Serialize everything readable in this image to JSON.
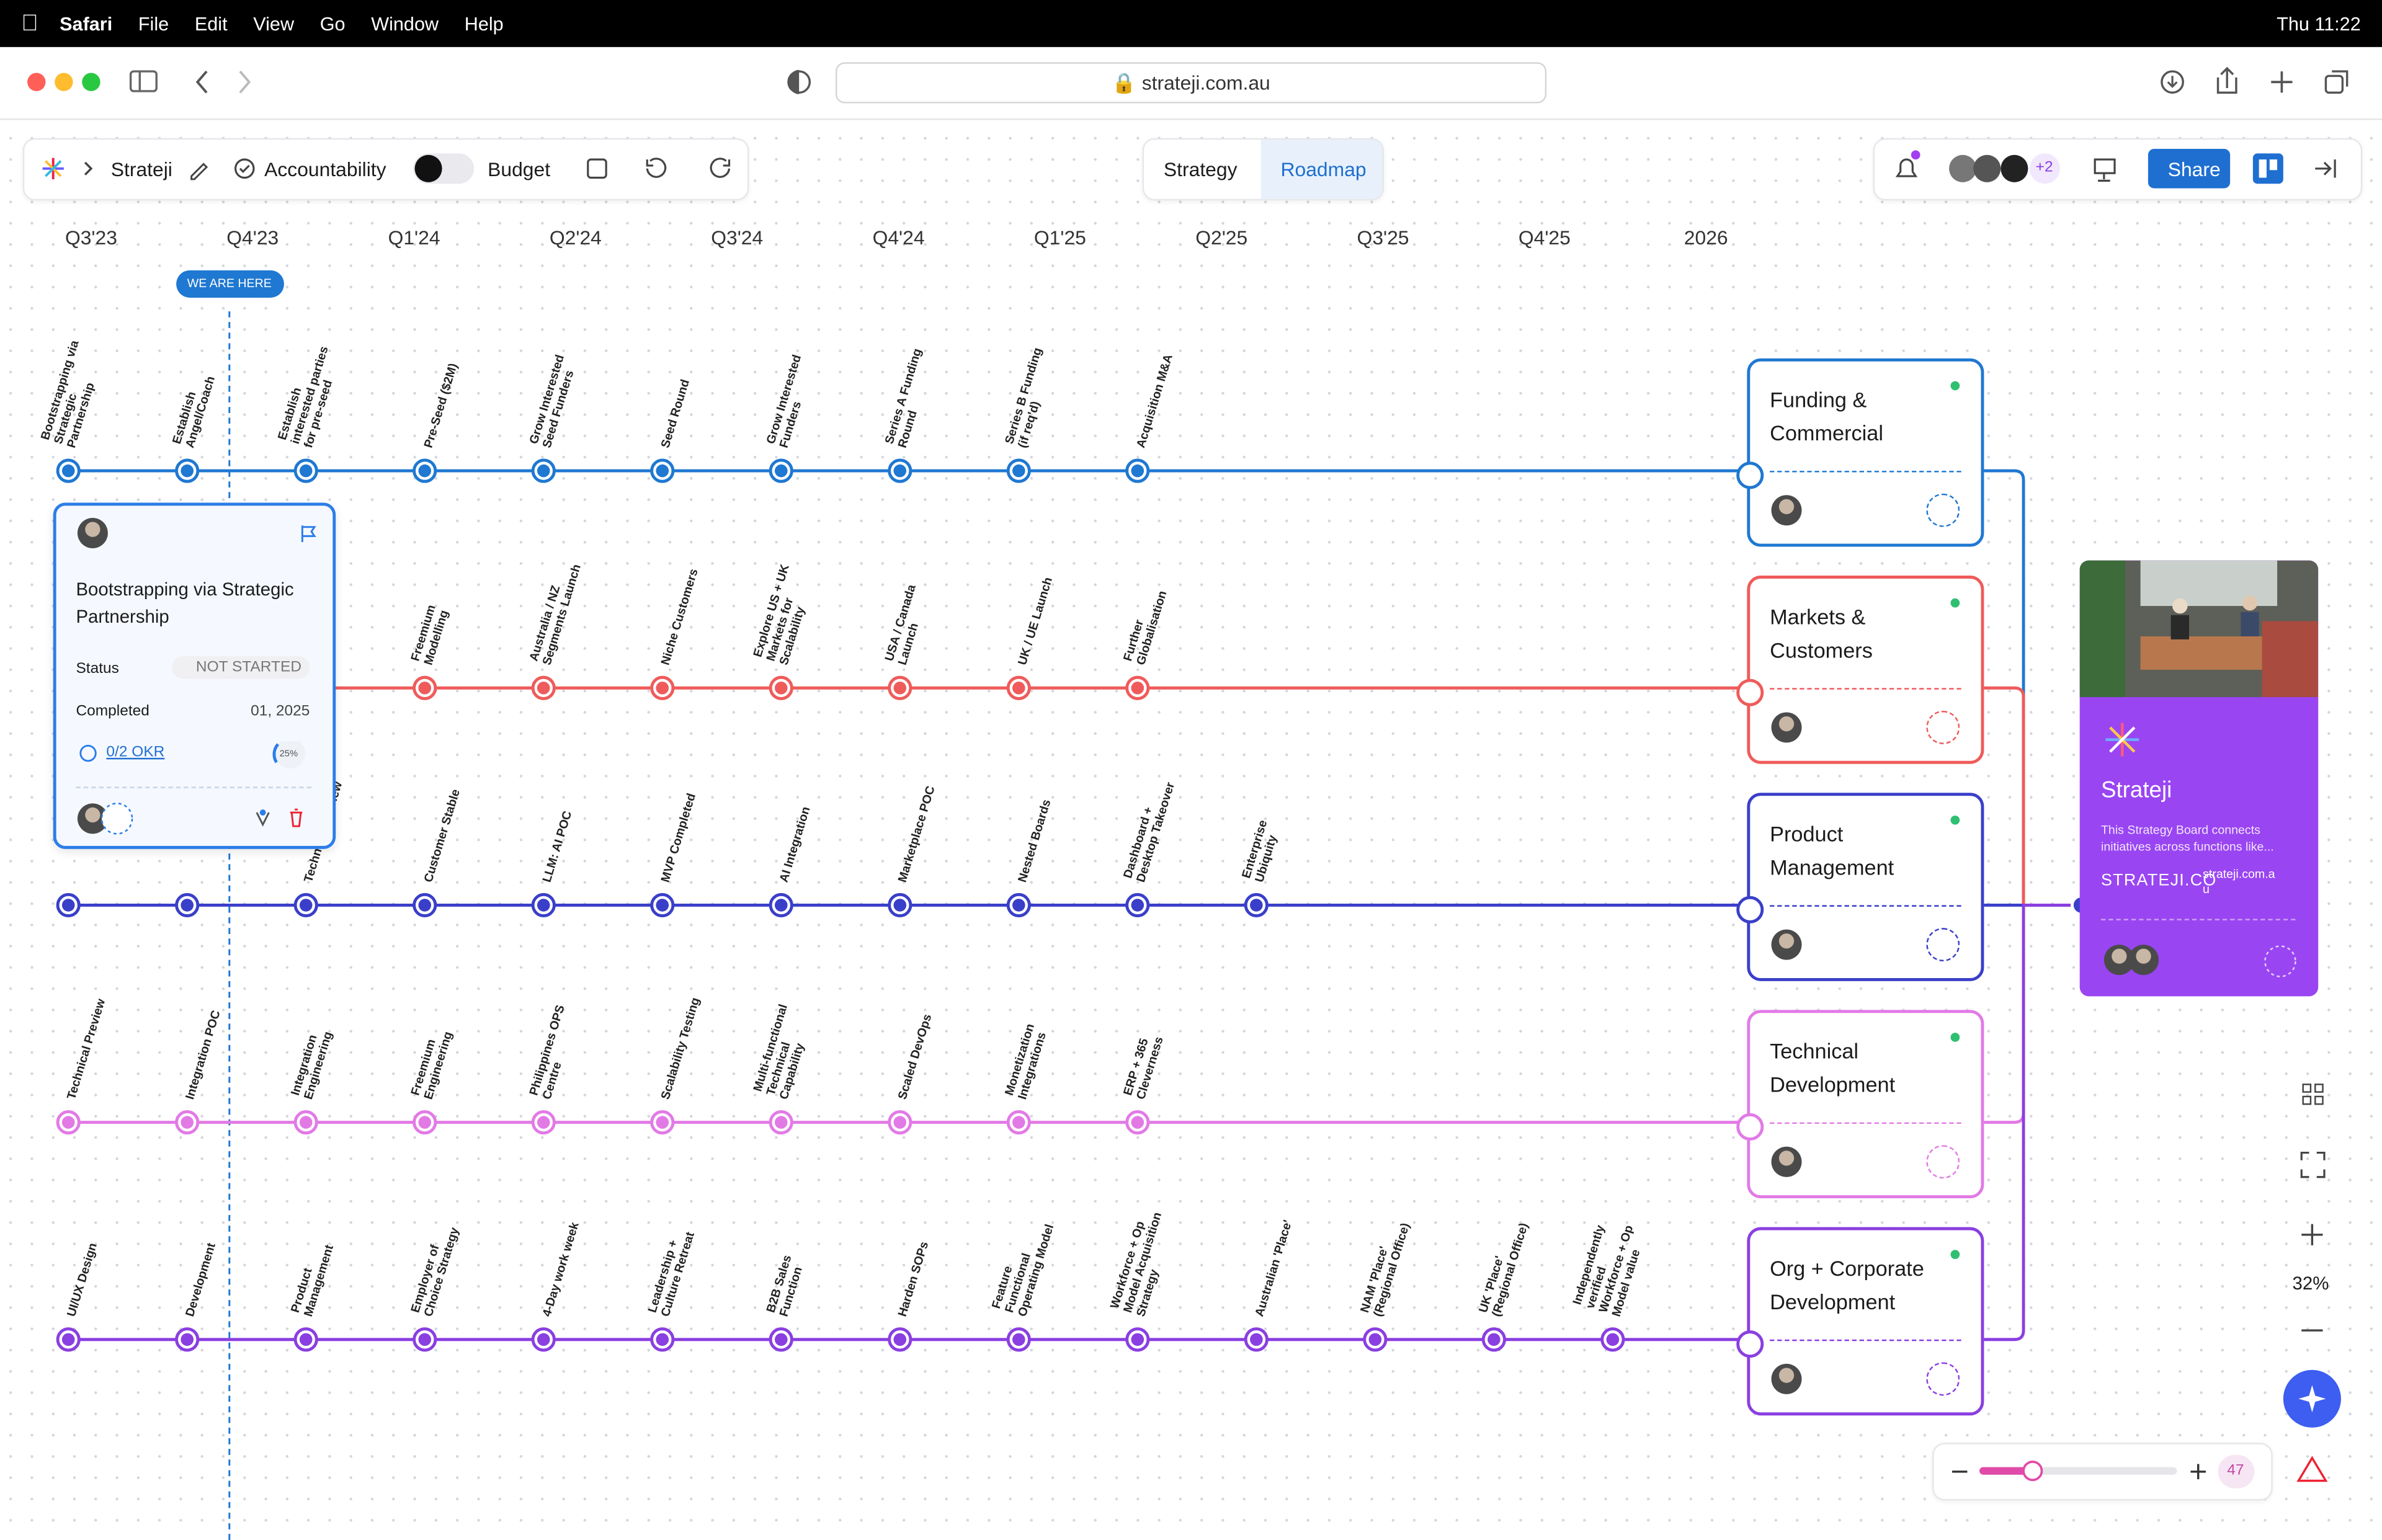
{
  "menubar": {
    "app": "Safari",
    "menus": [
      "File",
      "Edit",
      "View",
      "Go",
      "Window",
      "Help"
    ],
    "clock": "Thu 11:22"
  },
  "browser": {
    "url": "strateji.com.au"
  },
  "toolbar": {
    "board": "Strateji",
    "accountability": "Accountability",
    "budget": "Budget",
    "tabs": [
      "Strategy",
      "Roadmap"
    ],
    "collaborators_extra": "+2",
    "share": "Share"
  },
  "timeline": {
    "quarters": [
      "Q3'23",
      "Q4'23",
      "Q1'24",
      "Q2'24",
      "Q3'24",
      "Q4'24",
      "Q1'25",
      "Q2'25",
      "Q3'25",
      "Q4'25",
      "2026"
    ],
    "marker": "WE ARE HERE"
  },
  "lanes": [
    {
      "name": "Funding & Commercial",
      "color": "#1f78d1",
      "milestones": [
        "Bootstrapping via Strategic Partnership",
        "Establish Angel/Coach",
        "Establish interested parties for pre-seed",
        "Pre-Seed ($2M)",
        "Grow Interested Seed Funders",
        "Seed Round",
        "Grow Interested Funders",
        "Series A Funding Round",
        "Series B Funding (if req'd)",
        "Acquisition M&A"
      ]
    },
    {
      "name": "Markets & Customers",
      "color": "#ef5b5b",
      "milestones": [
        null,
        null,
        null,
        "Freemium Modelling",
        "Australia / NZ Segments Launch",
        "Niche Customers",
        "Explore US + UK Markets for Scalability",
        "USA / Canada Launch",
        "UK / UE Launch",
        "Further Globalisation"
      ]
    },
    {
      "name": "Product Management",
      "color": "#3a3fc9",
      "milestones": [
        null,
        null,
        "Technical Preview",
        "Customer Stable",
        "LLM: AI POC",
        "MVP Completed",
        "AI Integration",
        "Marketplace POC",
        "Nested Boards",
        "Dashboard + Desktop Takeover",
        "Enterprise Ubiquity"
      ]
    },
    {
      "name": "Technical Development",
      "color": "#e27ae6",
      "milestones": [
        "Technical Preview",
        "Integration POC",
        "Integration Engineering",
        "Freemium Engineering",
        "Philippines OPS Centre",
        "Scalability Testing",
        "Multi-functional Technical Capability",
        "Scaled DevOps",
        "Monetization Integrations",
        "ERP + 365 Cleverness"
      ]
    },
    {
      "name": "Org + Corporate Development",
      "color": "#8a3fe0",
      "milestones": [
        "UI/UX Design",
        "Development",
        "Product Management",
        "Employer of Choice Strategy",
        "4-Day work week",
        "Leadership + Culture Retreat",
        "B2B Sales Function",
        "Harden SOPs",
        "Feature Functional Operating Model",
        "Workforce + Op Model Acquisition Strategy",
        "Australian 'Place'",
        "NAM 'Place' (Regional Office)",
        "UK 'Place' (Regional Office)",
        "Independently verified Workforce + Op Model value"
      ]
    }
  ],
  "detail_card": {
    "title": "Bootstrapping via Strategic Partnership",
    "status_label": "Status",
    "status": "NOT STARTED",
    "completed_label": "Completed",
    "completed": "01, 2025",
    "okr": "0/2 OKR",
    "progress": "25%"
  },
  "board_card": {
    "title": "Strateji",
    "description": "This Strategy Board connects initiatives across functions like...",
    "brand": "STRATEJI.CO",
    "link": "strateji.com.au"
  },
  "zoom": {
    "level": "32%",
    "count": "47"
  }
}
